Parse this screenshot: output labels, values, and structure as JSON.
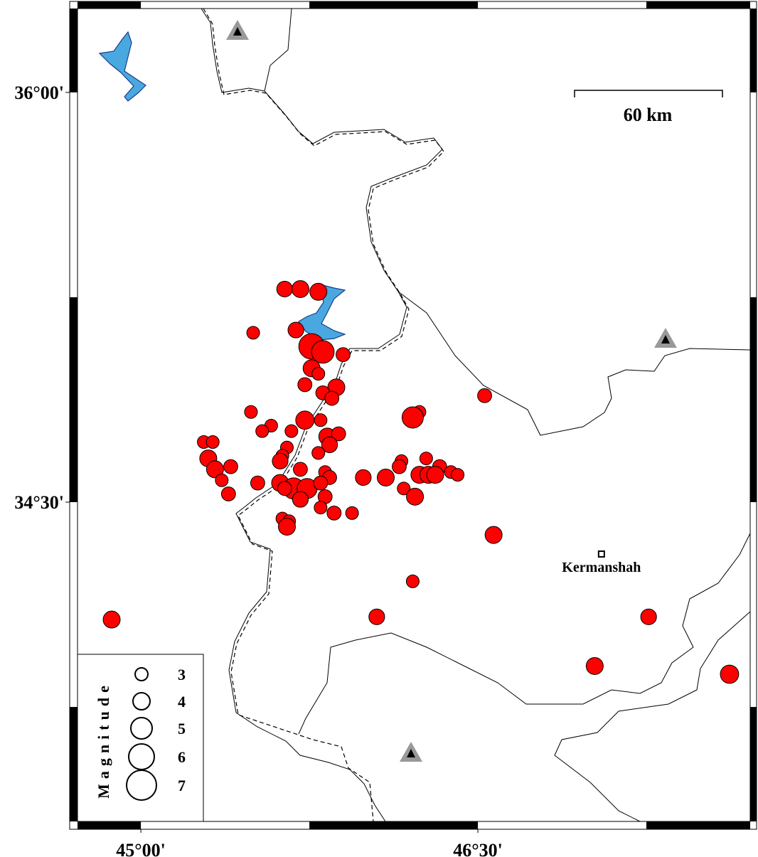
{
  "map": {
    "lonlim": [
      44.718,
      47.712
    ],
    "latlim": [
      33.331,
      36.307
    ],
    "lonticks": [
      {
        "value": 45,
        "label": "45°00'"
      },
      {
        "value": 46.5,
        "label": "46°30'"
      }
    ],
    "latticks": [
      {
        "value": 36,
        "label": "36°00'"
      },
      {
        "value": 34.5,
        "label": "34°30'"
      }
    ]
  },
  "scale_bar": {
    "label": "60 km"
  },
  "cities": [
    {
      "name": "Kermanshah",
      "lon": 47.05,
      "lat": 34.31
    }
  ],
  "events": {
    "lon": [
      45.64,
      45.71,
      45.79,
      45.5,
      45.69,
      45.76,
      45.81,
      45.9,
      45.76,
      45.79,
      45.73,
      45.87,
      45.81,
      45.85,
      46.53,
      45.49,
      46.24,
      46.21,
      45.73,
      45.8,
      45.58,
      45.54,
      45.67,
      45.83,
      45.88,
      45.84,
      45.28,
      45.32,
      45.65,
      45.63,
      45.79,
      45.3,
      45.33,
      45.4,
      46.16,
      46.27,
      46.15,
      45.62,
      45.71,
      45.82,
      45.84,
      45.99,
      46.09,
      46.24,
      46.28,
      46.33,
      46.38,
      46.41,
      46.31,
      45.36,
      45.52,
      45.62,
      45.68,
      45.74,
      45.8,
      45.64,
      46.17,
      45.39,
      45.71,
      45.82,
      45.8,
      46.22,
      45.86,
      45.94,
      45.63,
      45.66,
      45.65,
      46.57,
      46.21,
      44.87,
      46.05,
      47.26,
      47.02,
      47.62
    ],
    "lat": [
      35.28,
      35.28,
      35.27,
      35.12,
      35.13,
      35.07,
      35.05,
      35.04,
      34.99,
      34.97,
      34.93,
      34.92,
      34.9,
      34.88,
      34.89,
      34.83,
      34.83,
      34.81,
      34.8,
      34.8,
      34.78,
      34.76,
      34.76,
      34.74,
      34.75,
      34.71,
      34.72,
      34.72,
      34.7,
      34.67,
      34.68,
      34.66,
      34.62,
      34.63,
      34.65,
      34.66,
      34.63,
      34.65,
      34.62,
      34.61,
      34.59,
      34.59,
      34.59,
      34.6,
      34.6,
      34.63,
      34.61,
      34.6,
      34.6,
      34.58,
      34.57,
      34.57,
      34.55,
      34.55,
      34.57,
      34.55,
      34.55,
      34.53,
      34.51,
      34.52,
      34.48,
      34.52,
      34.46,
      34.46,
      34.44,
      34.43,
      34.41,
      34.38,
      34.21,
      34.07,
      34.08,
      34.08,
      33.9,
      33.87
    ],
    "magnitude": [
      3.7,
      4,
      4,
      3,
      3.7,
      6,
      5.3,
      3.3,
      4,
      3,
      3.3,
      4,
      3.3,
      3.3,
      3.3,
      3,
      3,
      5,
      4.3,
      3,
      3,
      3,
      3,
      4,
      3.3,
      3.7,
      3,
      3,
      3,
      3,
      3,
      4,
      4,
      3.3,
      3,
      3,
      3.3,
      3.7,
      3.3,
      3,
      3.3,
      3.7,
      4,
      4,
      4,
      3.3,
      3,
      3,
      4,
      3,
      3.3,
      4,
      5,
      4.7,
      3.3,
      3.3,
      3,
      3.3,
      3.7,
      3.3,
      3,
      4,
      3.3,
      3,
      3,
      3,
      4,
      4,
      3,
      4,
      3.7,
      3.7,
      4,
      4.3
    ]
  },
  "legend": {
    "title": "Magnitude",
    "magnitudes": [
      3,
      4,
      5,
      6,
      7
    ]
  }
}
